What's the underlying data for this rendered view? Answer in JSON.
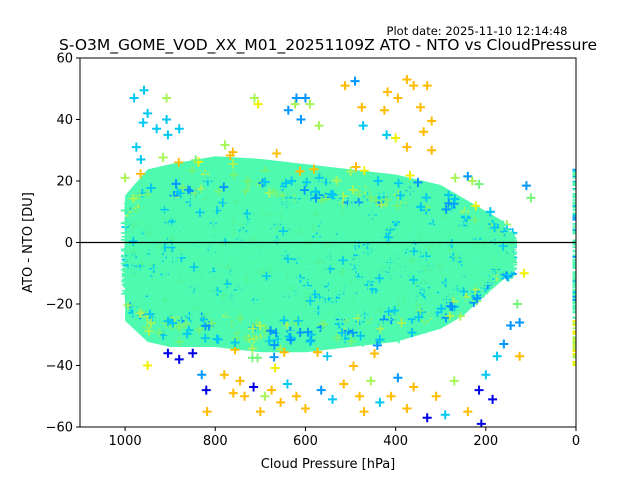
{
  "chart_data": {
    "type": "scatter",
    "title": "S-O3M_GOME_VOD_XX_M01_20251109Z ATO - NTO vs CloudPressure",
    "subtitle": "Plot date: 2025-11-10 12:14:48",
    "xlabel": "Cloud Pressure [hPa]",
    "ylabel": "ATO - NTO [DU]",
    "xlim": [
      1100,
      0
    ],
    "ylim": [
      -60,
      60
    ],
    "x_inverted": true,
    "grid": false,
    "legend": "none",
    "marker": "+",
    "xticks": [
      1000,
      800,
      600,
      400,
      200,
      0
    ],
    "yticks": [
      60,
      40,
      20,
      0,
      -20,
      -40,
      -60
    ],
    "xtick_labels": [
      "1000",
      "800",
      "600",
      "400",
      "200",
      "0"
    ],
    "ytick_labels": [
      "60",
      "40",
      "20",
      "0",
      "−20",
      "−40",
      "−60"
    ],
    "reference_line": {
      "y": 0,
      "color": "#000000"
    },
    "colors": {
      "core": "#4dfab0",
      "core_alt": "#52f59c",
      "cyan": "#00c8f0",
      "azure": "#0096ff",
      "blue": "#0000e6",
      "lime": "#a8f55a",
      "yellow": "#f0f000",
      "orange": "#ffbb00",
      "green": "#73f57a"
    },
    "dense_cloud": {
      "description": "Main dense point cloud (ATO-NTO per cloud pressure bin)",
      "points_sampled": 9000,
      "x_range": [
        140,
        1000
      ],
      "envelope": [
        {
          "x": 1000,
          "y_low": -30,
          "y_high": 18
        },
        {
          "x": 950,
          "y_low": -38,
          "y_high": 28
        },
        {
          "x": 900,
          "y_low": -40,
          "y_high": 30
        },
        {
          "x": 800,
          "y_low": -40,
          "y_high": 33
        },
        {
          "x": 700,
          "y_low": -42,
          "y_high": 32
        },
        {
          "x": 600,
          "y_low": -42,
          "y_high": 30
        },
        {
          "x": 500,
          "y_low": -40,
          "y_high": 28
        },
        {
          "x": 400,
          "y_low": -38,
          "y_high": 26
        },
        {
          "x": 300,
          "y_low": -33,
          "y_high": 22
        },
        {
          "x": 250,
          "y_low": -28,
          "y_high": 17
        },
        {
          "x": 200,
          "y_low": -20,
          "y_high": 12
        },
        {
          "x": 160,
          "y_low": -14,
          "y_high": 8
        }
      ]
    },
    "edge_column": {
      "description": "Points clustered at 0 hPa (clipped at right axis)",
      "x": 0,
      "y_range": [
        -40,
        24
      ]
    },
    "outliers": [
      {
        "x": 958,
        "y": 49.5,
        "c": "cyan"
      },
      {
        "x": 980,
        "y": 47,
        "c": "cyan"
      },
      {
        "x": 908,
        "y": 47,
        "c": "lime"
      },
      {
        "x": 950,
        "y": 42,
        "c": "cyan"
      },
      {
        "x": 908,
        "y": 40,
        "c": "cyan"
      },
      {
        "x": 960,
        "y": 39,
        "c": "cyan"
      },
      {
        "x": 930,
        "y": 37,
        "c": "cyan"
      },
      {
        "x": 880,
        "y": 37,
        "c": "cyan"
      },
      {
        "x": 905,
        "y": 35,
        "c": "cyan"
      },
      {
        "x": 965,
        "y": 27,
        "c": "cyan"
      },
      {
        "x": 975,
        "y": 31,
        "c": "cyan"
      },
      {
        "x": 1000,
        "y": 21,
        "c": "lime"
      },
      {
        "x": 713,
        "y": 47,
        "c": "lime"
      },
      {
        "x": 705,
        "y": 45,
        "c": "yellow"
      },
      {
        "x": 623,
        "y": 45,
        "c": "lime"
      },
      {
        "x": 620,
        "y": 47,
        "c": "azure"
      },
      {
        "x": 638,
        "y": 43,
        "c": "azure"
      },
      {
        "x": 600,
        "y": 47,
        "c": "azure"
      },
      {
        "x": 590,
        "y": 45,
        "c": "lime"
      },
      {
        "x": 610,
        "y": 40,
        "c": "azure"
      },
      {
        "x": 570,
        "y": 38,
        "c": "lime"
      },
      {
        "x": 512,
        "y": 51,
        "c": "orange"
      },
      {
        "x": 490,
        "y": 52.5,
        "c": "azure"
      },
      {
        "x": 475,
        "y": 44,
        "c": "orange"
      },
      {
        "x": 472,
        "y": 38,
        "c": "cyan"
      },
      {
        "x": 425,
        "y": 43,
        "c": "orange"
      },
      {
        "x": 418,
        "y": 49,
        "c": "orange"
      },
      {
        "x": 395,
        "y": 47,
        "c": "orange"
      },
      {
        "x": 375,
        "y": 53,
        "c": "orange"
      },
      {
        "x": 360,
        "y": 51,
        "c": "orange"
      },
      {
        "x": 330,
        "y": 51,
        "c": "orange"
      },
      {
        "x": 345,
        "y": 44,
        "c": "orange"
      },
      {
        "x": 320,
        "y": 39.5,
        "c": "orange"
      },
      {
        "x": 420,
        "y": 35,
        "c": "cyan"
      },
      {
        "x": 400,
        "y": 34,
        "c": "yellow"
      },
      {
        "x": 375,
        "y": 31,
        "c": "orange"
      },
      {
        "x": 320,
        "y": 30,
        "c": "orange"
      },
      {
        "x": 338,
        "y": 36,
        "c": "orange"
      },
      {
        "x": 268,
        "y": 21,
        "c": "lime"
      },
      {
        "x": 240,
        "y": 21.5,
        "c": "azure"
      },
      {
        "x": 230,
        "y": 20,
        "c": "lime"
      },
      {
        "x": 215,
        "y": 19,
        "c": "green"
      },
      {
        "x": 110,
        "y": 18.5,
        "c": "azure"
      },
      {
        "x": 100,
        "y": 14.5,
        "c": "green"
      },
      {
        "x": 950,
        "y": -40,
        "c": "yellow"
      },
      {
        "x": 905,
        "y": -36,
        "c": "blue"
      },
      {
        "x": 880,
        "y": -38,
        "c": "blue"
      },
      {
        "x": 850,
        "y": -36,
        "c": "blue"
      },
      {
        "x": 830,
        "y": -43,
        "c": "azure"
      },
      {
        "x": 820,
        "y": -48,
        "c": "blue"
      },
      {
        "x": 818,
        "y": -55,
        "c": "orange"
      },
      {
        "x": 780,
        "y": -43,
        "c": "orange"
      },
      {
        "x": 760,
        "y": -49,
        "c": "orange"
      },
      {
        "x": 745,
        "y": -45,
        "c": "orange"
      },
      {
        "x": 735,
        "y": -50,
        "c": "orange"
      },
      {
        "x": 715,
        "y": -47,
        "c": "blue"
      },
      {
        "x": 700,
        "y": -55,
        "c": "orange"
      },
      {
        "x": 690,
        "y": -50,
        "c": "lime"
      },
      {
        "x": 675,
        "y": -48,
        "c": "orange"
      },
      {
        "x": 655,
        "y": -52,
        "c": "orange"
      },
      {
        "x": 640,
        "y": -46,
        "c": "cyan"
      },
      {
        "x": 620,
        "y": -50,
        "c": "orange"
      },
      {
        "x": 600,
        "y": -54,
        "c": "orange"
      },
      {
        "x": 565,
        "y": -48,
        "c": "azure"
      },
      {
        "x": 540,
        "y": -51,
        "c": "cyan"
      },
      {
        "x": 515,
        "y": -46,
        "c": "orange"
      },
      {
        "x": 480,
        "y": -50,
        "c": "orange"
      },
      {
        "x": 470,
        "y": -55,
        "c": "orange"
      },
      {
        "x": 455,
        "y": -45,
        "c": "lime"
      },
      {
        "x": 435,
        "y": -52,
        "c": "cyan"
      },
      {
        "x": 410,
        "y": -50,
        "c": "orange"
      },
      {
        "x": 395,
        "y": -44,
        "c": "azure"
      },
      {
        "x": 375,
        "y": -54,
        "c": "orange"
      },
      {
        "x": 360,
        "y": -47,
        "c": "orange"
      },
      {
        "x": 330,
        "y": -57,
        "c": "blue"
      },
      {
        "x": 310,
        "y": -50,
        "c": "orange"
      },
      {
        "x": 290,
        "y": -56,
        "c": "cyan"
      },
      {
        "x": 270,
        "y": -45,
        "c": "lime"
      },
      {
        "x": 240,
        "y": -55,
        "c": "orange"
      },
      {
        "x": 215,
        "y": -48,
        "c": "blue"
      },
      {
        "x": 200,
        "y": -43,
        "c": "cyan"
      },
      {
        "x": 185,
        "y": -51,
        "c": "blue"
      },
      {
        "x": 175,
        "y": -37,
        "c": "cyan"
      },
      {
        "x": 160,
        "y": -33,
        "c": "azure"
      },
      {
        "x": 145,
        "y": -27,
        "c": "azure"
      },
      {
        "x": 125,
        "y": -37,
        "c": "orange"
      },
      {
        "x": 125,
        "y": -26,
        "c": "azure"
      },
      {
        "x": 130,
        "y": -20,
        "c": "green"
      },
      {
        "x": 115,
        "y": -10,
        "c": "yellow"
      },
      {
        "x": 210,
        "y": -59,
        "c": "blue"
      }
    ]
  }
}
